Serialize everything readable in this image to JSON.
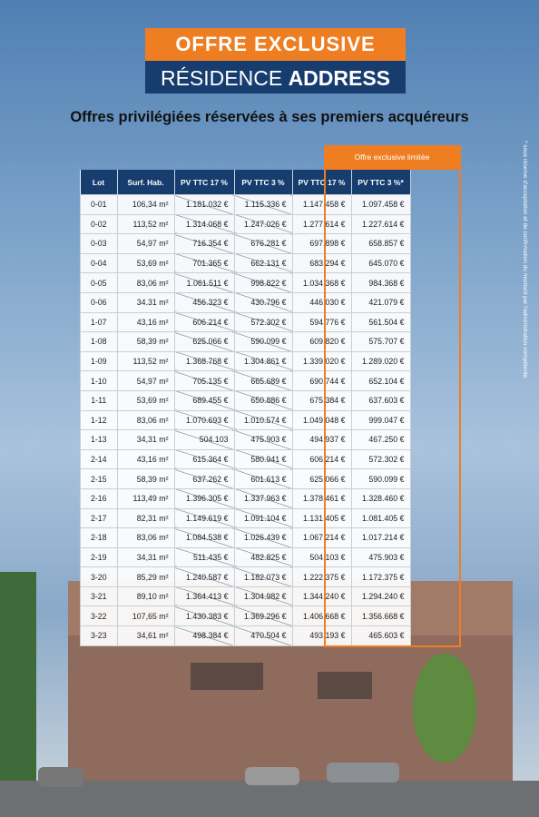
{
  "header": {
    "line1": "OFFRE EXCLUSIVE",
    "line2_a": "RÉSIDENCE ",
    "line2_b": "ADDRESS"
  },
  "subtitle": "Offres privilégiées réservées à ses premiers acquéreurs",
  "table": {
    "banner": "Offre exclusive limitée",
    "columns": [
      "Lot",
      "Surf. Hab.",
      "PV TTC 17 %",
      "PV TTC 3 %",
      "PV TTC 17 %",
      "PV TTC 3 %*"
    ],
    "rows": [
      [
        "0-01",
        "106,34 m²",
        "1.181.032 €",
        "1.115.336 €",
        "1.147.458 €",
        "1.097.458 €"
      ],
      [
        "0-02",
        "113,52 m²",
        "1.314.068 €",
        "1.247.026 €",
        "1.277.614 €",
        "1.227.614 €"
      ],
      [
        "0-03",
        "54,97 m²",
        "716.354 €",
        "676.281 €",
        "697.898 €",
        "658.857 €"
      ],
      [
        "0-04",
        "53,69 m²",
        "701.365 €",
        "662.131 €",
        "683.294 €",
        "645.070 €"
      ],
      [
        "0-05",
        "83,06 m²",
        "1.061.511 €",
        "998.822 €",
        "1.034.368 €",
        "984.368 €"
      ],
      [
        "0-06",
        "34.31 m²",
        "456.323 €",
        "430.796 €",
        "446.030 €",
        "421.079 €"
      ],
      [
        "1-07",
        "43,16 m²",
        "606.214 €",
        "572.302 €",
        "594.776 €",
        "561.504 €"
      ],
      [
        "1-08",
        "58,39 m²",
        "625.066 €",
        "590.099 €",
        "609.820 €",
        "575.707 €"
      ],
      [
        "1-09",
        "113,52 m²",
        "1.368.768 €",
        "1.304.861 €",
        "1.339.020 €",
        "1.289.020 €"
      ],
      [
        "1-10",
        "54,97 m²",
        "705.135 €",
        "665.689 €",
        "690.744 €",
        "652.104 €"
      ],
      [
        "1-11",
        "53,69 m²",
        "689.455 €",
        "650.886 €",
        "675.384 €",
        "637.603 €"
      ],
      [
        "1-12",
        "83,06 m²",
        "1.070.693 €",
        "1.010.574 €",
        "1.049.048 €",
        "999.047 €"
      ],
      [
        "1-13",
        "34,31 m²",
        "504.103",
        "475.903 €",
        "494.937 €",
        "467.250 €"
      ],
      [
        "2-14",
        "43,16 m²",
        "615.364 €",
        "580.941 €",
        "606.214 €",
        "572.302 €"
      ],
      [
        "2-15",
        "58,39 m²",
        "637.262 €",
        "601.613 €",
        "625.066 €",
        "590.099 €"
      ],
      [
        "2-16",
        "113,49 m²",
        "1.396.305 €",
        "1.337.963 €",
        "1.378.461 €",
        "1.328.460 €"
      ],
      [
        "2-17",
        "82,31 m²",
        "1.149.619 €",
        "1.091.104 €",
        "1.131.405 €",
        "1.081.405 €"
      ],
      [
        "2-18",
        "83,06 m²",
        "1.084.538 €",
        "1.026.439 €",
        "1.067.214 €",
        "1.017.214 €"
      ],
      [
        "2-19",
        "34,31 m²",
        "511.435 €",
        "482.825 €",
        "504.103 €",
        "475.903 €"
      ],
      [
        "3-20",
        "85,29 m²",
        "1.240.587 €",
        "1.182.073 €",
        "1.222.375 €",
        "1.172.375 €"
      ],
      [
        "3-21",
        "89,10 m²",
        "1.364.413 €",
        "1.304.982 €",
        "1.344.240 €",
        "1.294.240 €"
      ],
      [
        "3-22",
        "107,65 m²",
        "1.430.383 €",
        "1.369.296 €",
        "1.406.668 €",
        "1.356.668 €"
      ],
      [
        "3-23",
        "34,61 m²",
        "498.384 €",
        "470.504 €",
        "493.193 €",
        "465.603 €"
      ]
    ]
  },
  "footnote": "* sous réserve d'acceptation et de confirmation du montant par l'administration compétente."
}
